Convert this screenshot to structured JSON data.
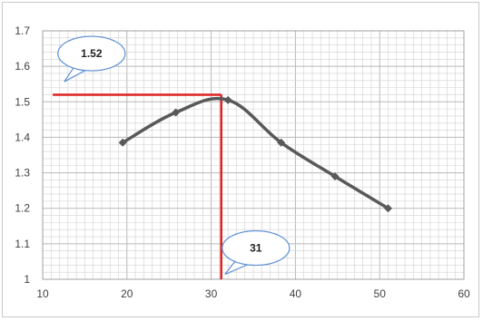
{
  "chart_data": {
    "type": "line",
    "title": "",
    "xlabel": "",
    "ylabel": "",
    "xlim": [
      10,
      60
    ],
    "ylim": [
      1,
      1.7
    ],
    "x_ticks": [
      "10",
      "20",
      "30",
      "40",
      "50",
      "60"
    ],
    "y_ticks": [
      "1",
      "1.1",
      "1.2",
      "1.3",
      "1.4",
      "1.5",
      "1.6",
      "1.7"
    ],
    "grid": true,
    "series": [
      {
        "x": [
          19.5,
          25.8,
          32,
          38.3,
          44.7,
          51
        ],
        "y": [
          1.385,
          1.47,
          1.505,
          1.385,
          1.29,
          1.2
        ],
        "color": "#595959"
      }
    ],
    "guide_lines": {
      "color": "#e02020",
      "horizontal": {
        "y": 1.52,
        "x_from": 11.2,
        "x_to": 31.2
      },
      "vertical": {
        "x": 31.2,
        "y_from": 1.0,
        "y_to": 1.52
      }
    },
    "annotations": [
      {
        "text": "1.52",
        "x": 15.8,
        "y": 1.636
      },
      {
        "text": "31",
        "x": 35.3,
        "y": 1.088
      }
    ],
    "colors": {
      "grid": "#d0d0d0",
      "callout_border": "#5b8fd4",
      "callout_fill": "#ffffff"
    }
  }
}
